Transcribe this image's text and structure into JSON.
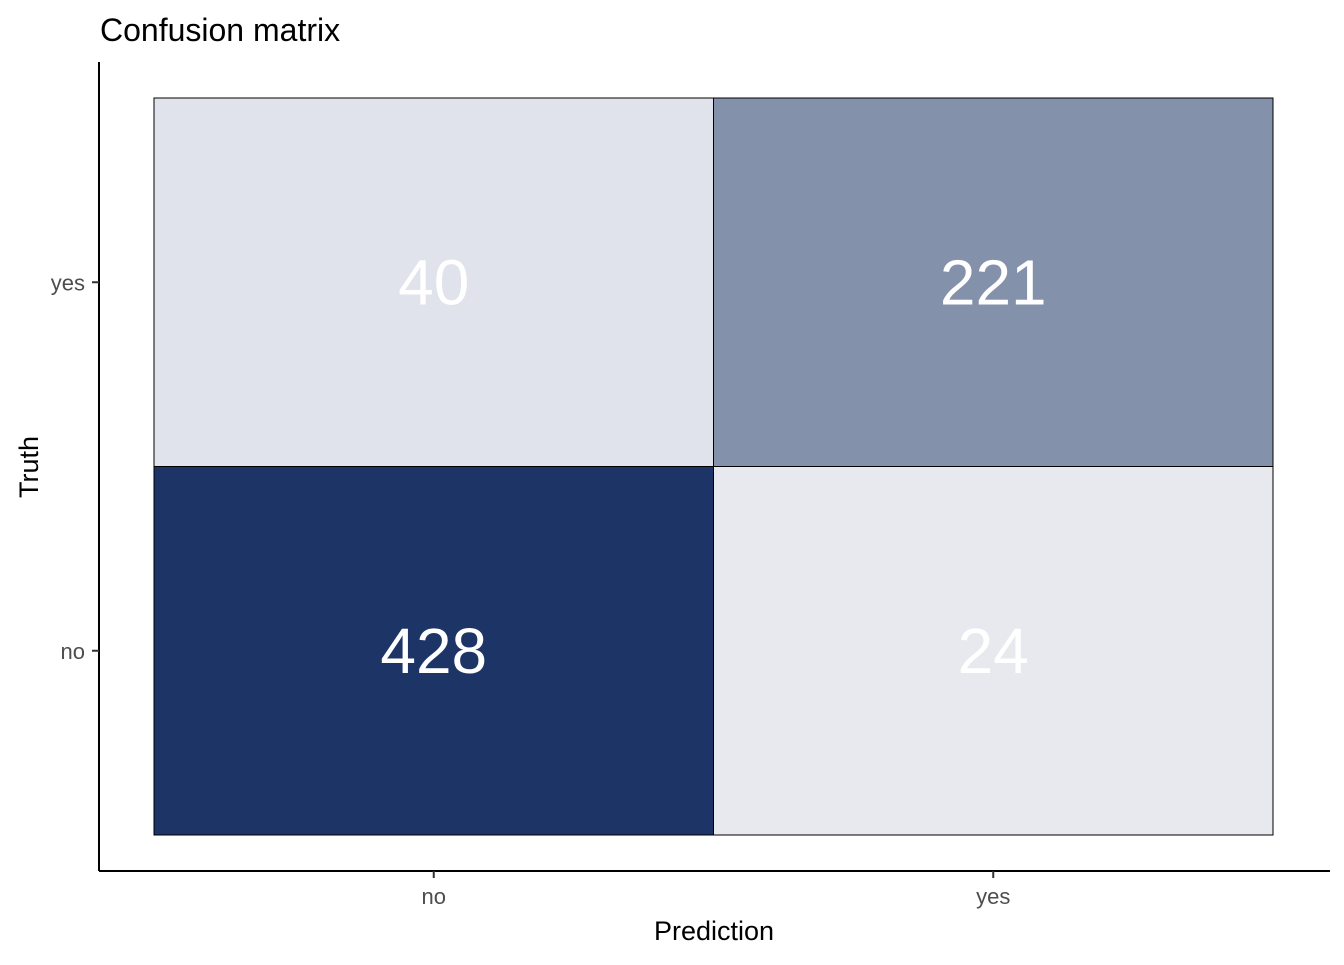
{
  "chart_data": {
    "type": "heatmap",
    "title": "Confusion matrix",
    "xlabel": "Prediction",
    "ylabel": "Truth",
    "x_categories": [
      "no",
      "yes"
    ],
    "y_categories": [
      "no",
      "yes"
    ],
    "cells": [
      {
        "prediction": "no",
        "truth": "yes",
        "value": 40,
        "color": "#e0e3eb"
      },
      {
        "prediction": "yes",
        "truth": "yes",
        "value": 221,
        "color": "#8491ab"
      },
      {
        "prediction": "no",
        "truth": "no",
        "value": 428,
        "color": "#1c3466"
      },
      {
        "prediction": "yes",
        "truth": "no",
        "value": 24,
        "color": "#e8e9ee"
      }
    ],
    "label_color": "#ffffff",
    "grid": false,
    "legend": "none"
  }
}
